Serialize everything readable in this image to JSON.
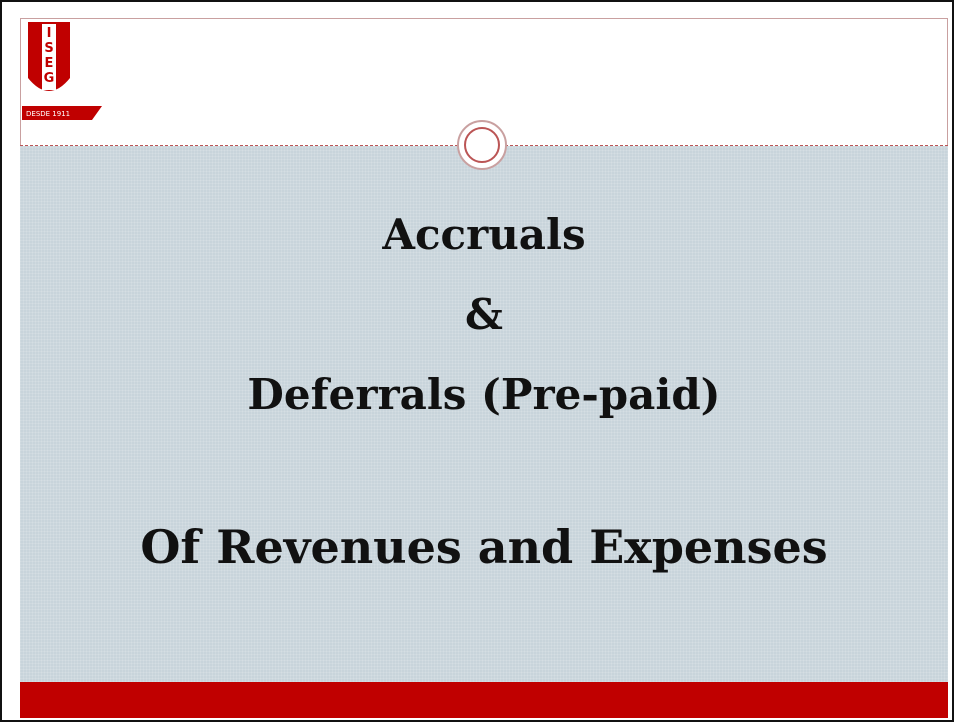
{
  "logo": {
    "letters": [
      "I",
      "S",
      "E",
      "G"
    ],
    "caption": "DESDE 1911"
  },
  "slide": {
    "title_lines": [
      "Accruals",
      "&",
      "Deferrals (Pre-paid)"
    ],
    "subtitle": "Of Revenues and Expenses"
  }
}
